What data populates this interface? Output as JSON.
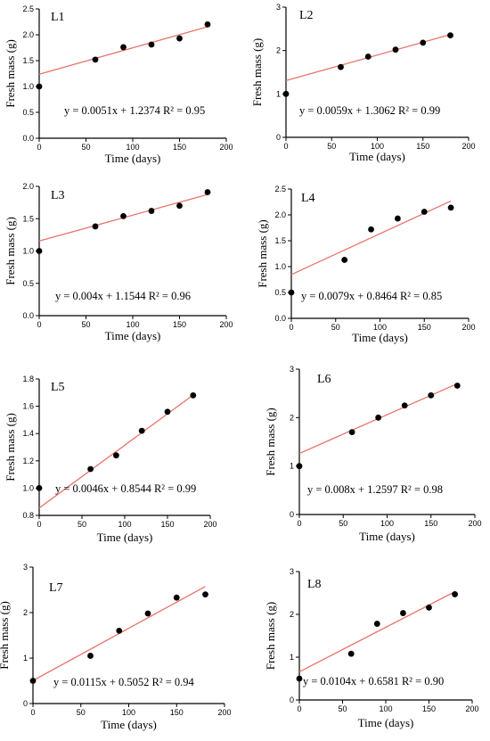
{
  "chart_data": [
    {
      "type": "scatter",
      "title": "L1",
      "xlabel": "Time (days)",
      "ylabel": "Fresh mass (g)",
      "xlim": [
        0,
        200
      ],
      "ylim": [
        0,
        2.5
      ],
      "xticks": [
        "0",
        "50",
        "100",
        "150",
        "200"
      ],
      "yticks": [
        "0.0",
        "0.5",
        "1.0",
        "1.5",
        "2.0",
        "2.5"
      ],
      "x": [
        0,
        60,
        90,
        120,
        150,
        180
      ],
      "y": [
        1.0,
        1.52,
        1.76,
        1.81,
        1.93,
        2.2
      ],
      "fit": {
        "slope": 0.0051,
        "intercept": 1.2374,
        "x_range": [
          0,
          180
        ],
        "color": "#e8736b"
      },
      "annotation": "y = 0.0051x + 1.2374    R² = 0.95"
    },
    {
      "type": "scatter",
      "title": "L2",
      "xlabel": "Time (days)",
      "ylabel": "Fresh mass (g)",
      "xlim": [
        0,
        200
      ],
      "ylim": [
        0,
        3
      ],
      "xticks": [
        "0",
        "50",
        "100",
        "150",
        "200"
      ],
      "yticks": [
        "0",
        "1",
        "2",
        "3"
      ],
      "x": [
        0,
        60,
        90,
        120,
        150,
        180
      ],
      "y": [
        1.0,
        1.62,
        1.86,
        2.02,
        2.18,
        2.35
      ],
      "fit": {
        "slope": 0.0059,
        "intercept": 1.3062,
        "x_range": [
          0,
          180
        ],
        "color": "#e8736b"
      },
      "annotation": "y = 0.0059x + 1.3062    R² = 0.99"
    },
    {
      "type": "scatter",
      "title": "L3",
      "xlabel": "Time (days)",
      "ylabel": "Fresh mass (g)",
      "xlim": [
        0,
        200
      ],
      "ylim": [
        0,
        2.0
      ],
      "xticks": [
        "0",
        "50",
        "100",
        "150",
        "200"
      ],
      "yticks": [
        "0.0",
        "0.5",
        "1.0",
        "1.5",
        "2.0"
      ],
      "x": [
        0,
        60,
        90,
        120,
        150,
        180
      ],
      "y": [
        1.0,
        1.38,
        1.54,
        1.62,
        1.7,
        1.91
      ],
      "fit": {
        "slope": 0.004,
        "intercept": 1.1544,
        "x_range": [
          0,
          180
        ],
        "color": "#e8736b"
      },
      "annotation": "y = 0.004x + 1.1544    R²  = 0.96"
    },
    {
      "type": "scatter",
      "title": "L4",
      "xlabel": "Time (days)",
      "ylabel": "Fresh mass (g)",
      "xlim": [
        0,
        200
      ],
      "ylim": [
        0,
        2.5
      ],
      "xticks": [
        "0",
        "50",
        "100",
        "150",
        "200"
      ],
      "yticks": [
        "0.0",
        "0.5",
        "1.0",
        "1.5",
        "2.0",
        "2.5"
      ],
      "x": [
        0,
        60,
        90,
        120,
        150,
        180
      ],
      "y": [
        0.5,
        1.13,
        1.72,
        1.93,
        2.06,
        2.14
      ],
      "fit": {
        "slope": 0.0079,
        "intercept": 0.8464,
        "x_range": [
          0,
          180
        ],
        "color": "#e8736b"
      },
      "annotation": "y = 0.0079x + 0.8464    R²  = 0.85"
    },
    {
      "type": "scatter",
      "title": "L5",
      "xlabel": "Time (days)",
      "ylabel": "Fresh mass (g)",
      "xlim": [
        0,
        200
      ],
      "ylim": [
        0.8,
        1.8
      ],
      "xticks": [
        "0",
        "50",
        "100",
        "150",
        "200"
      ],
      "yticks": [
        "0.8",
        "1.0",
        "1.2",
        "1.4",
        "1.6",
        "1.8"
      ],
      "x": [
        0,
        60,
        90,
        120,
        150,
        180
      ],
      "y": [
        1.0,
        1.14,
        1.24,
        1.42,
        1.56,
        1.68
      ],
      "fit": {
        "slope": 0.0046,
        "intercept": 0.8544,
        "x_range": [
          0,
          180
        ],
        "color": "#e8736b"
      },
      "annotation": "y = 0.0046x + 0.8544    R² = 0.99"
    },
    {
      "type": "scatter",
      "title": "L6",
      "xlabel": "Time (days)",
      "ylabel": "Fresh mass (g)",
      "xlim": [
        0,
        200
      ],
      "ylim": [
        0,
        3
      ],
      "xticks": [
        "0",
        "50",
        "100",
        "150",
        "200"
      ],
      "yticks": [
        "0",
        "1",
        "2",
        "3"
      ],
      "x": [
        0,
        60,
        90,
        120,
        150,
        180
      ],
      "y": [
        1.0,
        1.7,
        2.0,
        2.25,
        2.46,
        2.66
      ],
      "fit": {
        "slope": 0.008,
        "intercept": 1.2597,
        "x_range": [
          0,
          180
        ],
        "color": "#e8736b"
      },
      "annotation": "y = 0.008x + 1.2597    R²  = 0.98"
    },
    {
      "type": "scatter",
      "title": "L7",
      "xlabel": "Time (days)",
      "ylabel": "Fresh mass (g)",
      "xlim": [
        0,
        200
      ],
      "ylim": [
        0,
        3
      ],
      "xticks": [
        "0",
        "50",
        "100",
        "150",
        "200"
      ],
      "yticks": [
        "0",
        "1",
        "2",
        "3"
      ],
      "x": [
        0,
        60,
        90,
        120,
        150,
        180
      ],
      "y": [
        0.5,
        1.05,
        1.6,
        1.98,
        2.33,
        2.4
      ],
      "fit": {
        "slope": 0.0115,
        "intercept": 0.5052,
        "x_range": [
          0,
          180
        ],
        "color": "#e8736b"
      },
      "annotation": "y = 0.0115x + 0.5052    R² = 0.94"
    },
    {
      "type": "scatter",
      "title": "L8",
      "xlabel": "Time (days)",
      "ylabel": "Fresh mass (g)",
      "xlim": [
        0,
        200
      ],
      "ylim": [
        0,
        3
      ],
      "xticks": [
        "0",
        "50",
        "100",
        "150",
        "200"
      ],
      "yticks": [
        "0",
        "1",
        "2",
        "3"
      ],
      "x": [
        0,
        60,
        90,
        120,
        150,
        180
      ],
      "y": [
        0.5,
        1.08,
        1.78,
        2.03,
        2.16,
        2.47
      ],
      "fit": {
        "slope": 0.0104,
        "intercept": 0.6581,
        "x_range": [
          0,
          180
        ],
        "color": "#e8736b"
      },
      "annotation": "y = 0.0104x + 0.6581    R² = 0.90"
    }
  ]
}
